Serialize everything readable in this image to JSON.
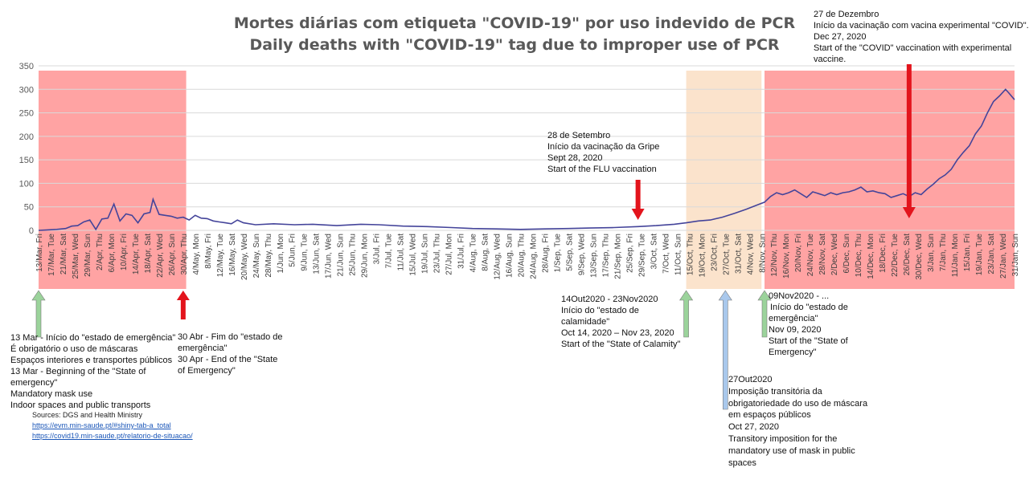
{
  "titles": {
    "pt": "Mortes diárias com etiqueta \"COVID-19\" por uso indevido de PCR",
    "en": "Daily deaths with \"COVID-19\" tag  due to improper use of PCR"
  },
  "notes": {
    "vaccine": [
      "27 de Dezembro",
      "Início da vacinação com vacina experimental \"COVID\".",
      "Dec 27, 2020",
      "Start of the \"COVID\" vaccination with experimental",
      "vaccine."
    ],
    "flu": [
      "28 de Setembro",
      "Início da vacinação da Gripe",
      "Sept 28, 2020",
      "Start of the FLU vaccination"
    ],
    "calamity": [
      "14Out2020 - 23Nov2020",
      "Início do \"estado de",
      "calamidade\"",
      "Oct 14, 2020 – Nov 23, 2020",
      "Start of the \"State of Calamity\""
    ],
    "emergency2": [
      "09Nov2020 - ...",
      "Início do \"estado de",
      "emergência\"",
      "Nov 09, 2020",
      "Start of the \"State of",
      "Emergency\""
    ],
    "emergency1": [
      "13 Mar - Início do \"estado de emergência\"",
      "É obrigatório o uso de máscaras",
      "Espaços interiores e transportes públicos",
      "13 Mar - Beginning of the \"State of",
      "emergency\"",
      "Mandatory mask use",
      "Indoor spaces and public transports"
    ],
    "end_emergency": [
      "30 Abr - Fim do \"estado de",
      "emergência\"",
      "30 Apr - End of the \"State",
      "of Emergency\""
    ],
    "mask": [
      "27Out2020",
      "Imposição transitória da",
      "obrigatoriedade do uso de máscara",
      "em espaços públicos",
      "Oct 27, 2020",
      "Transitory imposition for the",
      "mandatory use of mask in public",
      "spaces"
    ]
  },
  "sources": {
    "label": "Sources: DGS and Health Ministry",
    "link1": "https://evm.min-saude.pt/#shiny-tab-a_total",
    "link2": "https://covid19.min-saude.pt/relatorio-de-situacao/"
  },
  "colors": {
    "line": "#44449a",
    "emergency_band": "#ffa3a3",
    "calamity_band": "#fbe3cc",
    "red_arrow": "#e3141c",
    "green_arrow": "#9bd39b",
    "blue_arrow": "#a9c8ec",
    "grid": "#d9d9d9",
    "title": "#595959"
  },
  "chart_data": {
    "type": "line",
    "ylim": [
      0,
      350
    ],
    "yticks": [
      0,
      50,
      100,
      150,
      200,
      250,
      300,
      350
    ],
    "grid": "horizontal",
    "x_start": "2020-03-13",
    "x_end": "2021-01-31",
    "xtick_labels": [
      "13/Mar, Fri",
      "17/Mar, Tue",
      "21/Mar, Sat",
      "25/Mar, Wed",
      "29/Mar, Sun",
      "2/Apr, Thu",
      "6/Apr, Mon",
      "10/Apr, Fri",
      "14/Apr, Tue",
      "18/Apr, Sat",
      "22/Apr, Wed",
      "26/Apr, Sun",
      "30/Apr, Thu",
      "4/May, Mon",
      "8/May, Fri",
      "12/May, Tue",
      "16/May, Sat",
      "20/May, Wed",
      "24/May, Sun",
      "28/May, Thu",
      "1/Jun, Mon",
      "5/Jun, Fri",
      "9/Jun, Tue",
      "13/Jun, Sat",
      "17/Jun, Wed",
      "21/Jun, Sun",
      "25/Jun, Thu",
      "29/Jun, Mon",
      "3/Jul, Fri",
      "7/Jul, Tue",
      "11/Jul, Sat",
      "15/Jul, Wed",
      "19/Jul, Sun",
      "23/Jul, Thu",
      "27/Jul, Mon",
      "31/Jul, Fri",
      "4/Aug, Tue",
      "8/Aug, Sat",
      "12/Aug, Wed",
      "16/Aug, Sun",
      "20/Aug, Thu",
      "24/Aug, Mon",
      "28/Aug, Fri",
      "1/Sep, Tue",
      "5/Sep, Sat",
      "9/Sep, Wed",
      "13/Sep, Sun",
      "17/Sep, Thu",
      "21/Sep, Mon",
      "25/Sep, Fri",
      "29/Sep, Tue",
      "3/Oct, Sat",
      "7/Oct, Wed",
      "11/Oct, Sun",
      "15/Oct, Thu",
      "19/Oct, Mon",
      "23/Oct, Fri",
      "27/Oct, Tue",
      "31/Oct, Sat",
      "4/Nov, Wed",
      "8/Nov, Sun",
      "12/Nov, Thu",
      "16/Nov, Mon",
      "20/Nov, Fri",
      "24/Nov, Tue",
      "28/Nov, Sat",
      "2/Dec, Wed",
      "6/Dec, Sun",
      "10/Dec, Thu",
      "14/Dec, Mon",
      "18/Dec, Fri",
      "22/Dec, Tue",
      "26/Dec, Sat",
      "30/Dec, Wed",
      "3/Jan, Sun",
      "7/Jan, Thu",
      "11/Jan, Mon",
      "15/Jan, Fri",
      "19/Jan, Tue",
      "23/Jan, Sat",
      "27/Jan, Wed",
      "31/Jan, Sun"
    ],
    "bands": [
      {
        "from": "2020-03-13",
        "to": "2020-05-01",
        "kind": "emergency"
      },
      {
        "from": "2020-10-14",
        "to": "2020-11-08",
        "kind": "calamity"
      },
      {
        "from": "2020-11-09",
        "to": "2021-01-31",
        "kind": "emergency"
      }
    ],
    "markers": [
      {
        "date": "2020-03-13",
        "kind": "green",
        "dir": "up"
      },
      {
        "date": "2020-04-30",
        "kind": "red",
        "dir": "up"
      },
      {
        "date": "2020-09-28",
        "kind": "red",
        "dir": "down"
      },
      {
        "date": "2020-10-14",
        "kind": "green",
        "dir": "up"
      },
      {
        "date": "2020-10-27",
        "kind": "blue",
        "dir": "up"
      },
      {
        "date": "2020-11-09",
        "kind": "green",
        "dir": "up"
      },
      {
        "date": "2020-12-27",
        "kind": "red",
        "dir": "down"
      }
    ],
    "series": [
      {
        "points": [
          [
            "2020-03-13",
            0
          ],
          [
            "2020-03-16",
            1
          ],
          [
            "2020-03-19",
            2
          ],
          [
            "2020-03-22",
            4
          ],
          [
            "2020-03-24",
            9
          ],
          [
            "2020-03-26",
            10
          ],
          [
            "2020-03-28",
            18
          ],
          [
            "2020-03-30",
            22
          ],
          [
            "2020-04-01",
            2
          ],
          [
            "2020-04-03",
            24
          ],
          [
            "2020-04-05",
            26
          ],
          [
            "2020-04-07",
            56
          ],
          [
            "2020-04-09",
            20
          ],
          [
            "2020-04-11",
            35
          ],
          [
            "2020-04-13",
            32
          ],
          [
            "2020-04-15",
            16
          ],
          [
            "2020-04-17",
            35
          ],
          [
            "2020-04-19",
            38
          ],
          [
            "2020-04-20",
            66
          ],
          [
            "2020-04-22",
            34
          ],
          [
            "2020-04-24",
            32
          ],
          [
            "2020-04-26",
            30
          ],
          [
            "2020-04-28",
            26
          ],
          [
            "2020-04-30",
            28
          ],
          [
            "2020-05-02",
            22
          ],
          [
            "2020-05-04",
            32
          ],
          [
            "2020-05-06",
            26
          ],
          [
            "2020-05-08",
            25
          ],
          [
            "2020-05-10",
            20
          ],
          [
            "2020-05-12",
            18
          ],
          [
            "2020-05-14",
            16
          ],
          [
            "2020-05-16",
            14
          ],
          [
            "2020-05-18",
            22
          ],
          [
            "2020-05-20",
            16
          ],
          [
            "2020-05-24",
            12
          ],
          [
            "2020-05-30",
            14
          ],
          [
            "2020-06-06",
            12
          ],
          [
            "2020-06-12",
            13
          ],
          [
            "2020-06-20",
            10
          ],
          [
            "2020-06-28",
            13
          ],
          [
            "2020-07-04",
            12
          ],
          [
            "2020-07-12",
            9
          ],
          [
            "2020-07-20",
            8
          ],
          [
            "2020-07-28",
            6
          ],
          [
            "2020-08-04",
            4
          ],
          [
            "2020-08-12",
            3
          ],
          [
            "2020-08-20",
            2
          ],
          [
            "2020-08-28",
            3
          ],
          [
            "2020-09-05",
            4
          ],
          [
            "2020-09-12",
            5
          ],
          [
            "2020-09-20",
            6
          ],
          [
            "2020-09-28",
            8
          ],
          [
            "2020-10-04",
            10
          ],
          [
            "2020-10-10",
            13
          ],
          [
            "2020-10-14",
            16
          ],
          [
            "2020-10-18",
            20
          ],
          [
            "2020-10-22",
            22
          ],
          [
            "2020-10-26",
            28
          ],
          [
            "2020-10-30",
            36
          ],
          [
            "2020-11-03",
            45
          ],
          [
            "2020-11-07",
            55
          ],
          [
            "2020-11-09",
            60
          ],
          [
            "2020-11-11",
            72
          ],
          [
            "2020-11-13",
            80
          ],
          [
            "2020-11-15",
            76
          ],
          [
            "2020-11-17",
            80
          ],
          [
            "2020-11-19",
            86
          ],
          [
            "2020-11-21",
            78
          ],
          [
            "2020-11-23",
            70
          ],
          [
            "2020-11-25",
            82
          ],
          [
            "2020-11-27",
            78
          ],
          [
            "2020-11-29",
            74
          ],
          [
            "2020-12-01",
            80
          ],
          [
            "2020-12-03",
            76
          ],
          [
            "2020-12-05",
            80
          ],
          [
            "2020-12-07",
            82
          ],
          [
            "2020-12-09",
            86
          ],
          [
            "2020-12-11",
            92
          ],
          [
            "2020-12-13",
            82
          ],
          [
            "2020-12-15",
            84
          ],
          [
            "2020-12-17",
            80
          ],
          [
            "2020-12-19",
            78
          ],
          [
            "2020-12-21",
            70
          ],
          [
            "2020-12-23",
            74
          ],
          [
            "2020-12-25",
            78
          ],
          [
            "2020-12-27",
            72
          ],
          [
            "2020-12-29",
            80
          ],
          [
            "2020-12-31",
            76
          ],
          [
            "2021-01-02",
            88
          ],
          [
            "2021-01-04",
            98
          ],
          [
            "2021-01-06",
            110
          ],
          [
            "2021-01-08",
            118
          ],
          [
            "2021-01-10",
            130
          ],
          [
            "2021-01-12",
            150
          ],
          [
            "2021-01-14",
            166
          ],
          [
            "2021-01-16",
            180
          ],
          [
            "2021-01-18",
            205
          ],
          [
            "2021-01-20",
            222
          ],
          [
            "2021-01-22",
            250
          ],
          [
            "2021-01-24",
            274
          ],
          [
            "2021-01-26",
            286
          ],
          [
            "2021-01-28",
            300
          ],
          [
            "2021-01-29",
            293
          ],
          [
            "2021-01-31",
            278
          ]
        ]
      }
    ]
  }
}
